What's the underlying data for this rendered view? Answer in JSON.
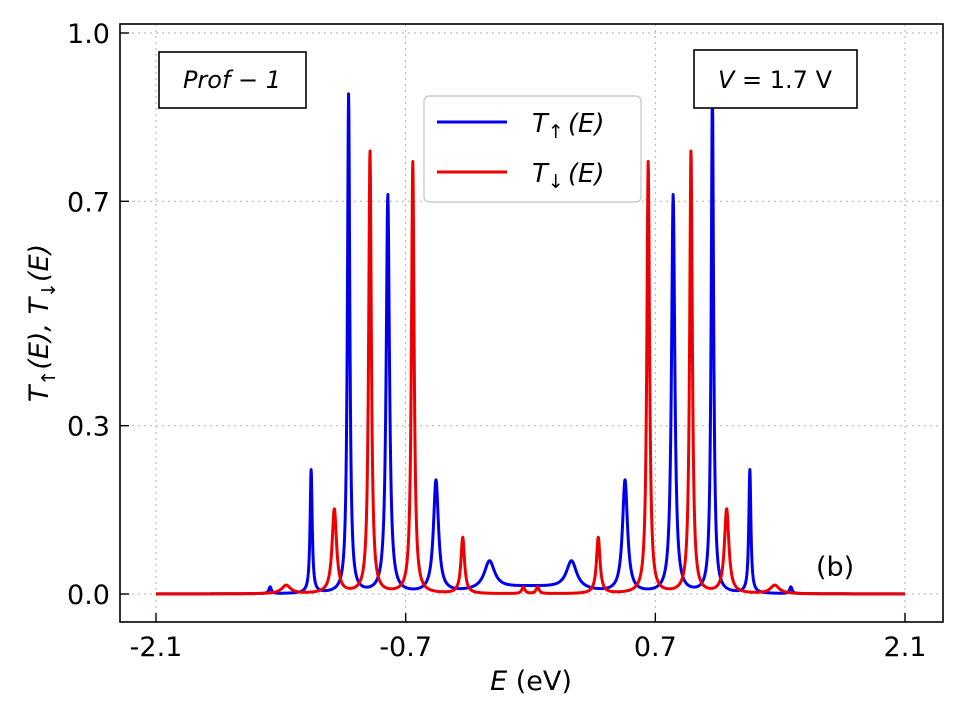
{
  "chart_data": {
    "type": "line",
    "xlabel_symbol": "E",
    "xlabel_unit": " (eV)",
    "ylabel_parts": [
      "T",
      "↑",
      "(E),  ",
      "T",
      "↓",
      "(E)"
    ],
    "xlim": [
      -2.1,
      2.1
    ],
    "ylim": [
      0.0,
      1.0
    ],
    "xticks": [
      -2.1,
      -0.7,
      0.7,
      2.1
    ],
    "xtick_labels": [
      "-2.1",
      "-0.7",
      "0.7",
      "2.1"
    ],
    "yticks": [
      0.0,
      0.3,
      0.7,
      1.0
    ],
    "ytick_labels": [
      "0.0",
      "0.3",
      "0.7",
      "1.0"
    ],
    "grid": true,
    "legend_location": "top-center",
    "annotations": {
      "profile_box": "Prof − 1",
      "voltage_box_symbol": "V",
      "voltage_box_value": " = 1.7 V",
      "panel_label": "(b)"
    },
    "series": [
      {
        "name": "T↑(E)",
        "legend_main": "T",
        "legend_sub": "↑",
        "legend_tail": "(E)",
        "color": "#0000ee",
        "background": 0.012,
        "peaks": [
          {
            "e": -1.46,
            "h": 0.012,
            "w": 0.008
          },
          {
            "e": -1.23,
            "h": 0.22,
            "w": 0.007
          },
          {
            "e": -1.02,
            "h": 0.89,
            "w": 0.008
          },
          {
            "e": -0.8,
            "h": 0.71,
            "w": 0.011
          },
          {
            "e": -0.53,
            "h": 0.2,
            "w": 0.017
          },
          {
            "e": -0.23,
            "h": 0.05,
            "w": 0.035
          },
          {
            "e": 0.23,
            "h": 0.05,
            "w": 0.035
          },
          {
            "e": 0.53,
            "h": 0.2,
            "w": 0.017
          },
          {
            "e": 0.8,
            "h": 0.71,
            "w": 0.011
          },
          {
            "e": 1.02,
            "h": 0.89,
            "w": 0.008
          },
          {
            "e": 1.23,
            "h": 0.22,
            "w": 0.007
          },
          {
            "e": 1.46,
            "h": 0.012,
            "w": 0.008
          }
        ]
      },
      {
        "name": "T↓(E)",
        "legend_main": "T",
        "legend_sub": "↓",
        "legend_tail": "(E)",
        "color": "#ee0000",
        "background": 0.0,
        "peaks": [
          {
            "e": -1.37,
            "h": 0.015,
            "w": 0.03
          },
          {
            "e": -1.1,
            "h": 0.15,
            "w": 0.015
          },
          {
            "e": -0.9,
            "h": 0.79,
            "w": 0.009
          },
          {
            "e": -0.66,
            "h": 0.77,
            "w": 0.009
          },
          {
            "e": -0.38,
            "h": 0.1,
            "w": 0.012
          },
          {
            "e": 0.04,
            "h": 0.012,
            "w": 0.01
          },
          {
            "e": -0.04,
            "h": 0.012,
            "w": 0.01
          },
          {
            "e": 0.38,
            "h": 0.1,
            "w": 0.012
          },
          {
            "e": 0.66,
            "h": 0.77,
            "w": 0.009
          },
          {
            "e": 0.9,
            "h": 0.79,
            "w": 0.009
          },
          {
            "e": 1.1,
            "h": 0.15,
            "w": 0.015
          },
          {
            "e": 1.37,
            "h": 0.015,
            "w": 0.03
          }
        ]
      }
    ]
  }
}
